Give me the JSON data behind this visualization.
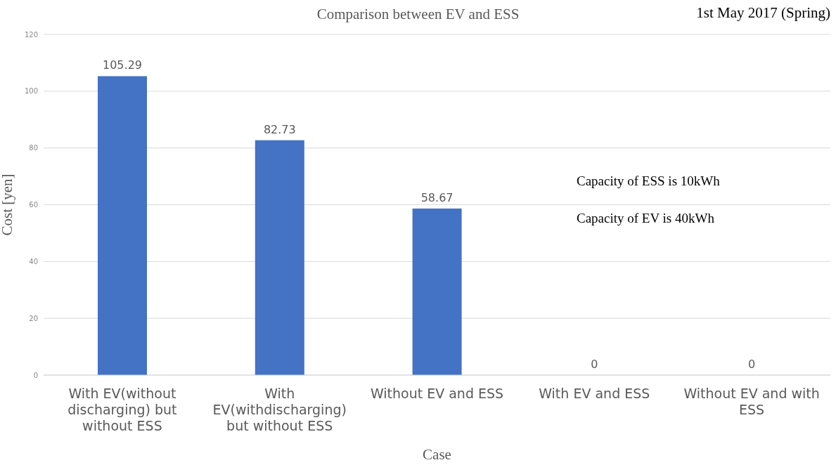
{
  "chart_data": {
    "type": "bar",
    "title": "Comparison between EV and ESS",
    "xlabel": "Case",
    "ylabel": "Cost [yen]",
    "categories": [
      "With EV(without discharging) but without ESS",
      "With EV(withdischarging) but without ESS",
      "Without EV and ESS",
      "With EV and ESS",
      "Without EV and with ESS"
    ],
    "values": [
      105.29,
      82.73,
      58.67,
      0,
      0
    ],
    "color": "#4472c4",
    "ylim": [
      0,
      120
    ],
    "yticks": [
      0,
      20,
      40,
      60,
      80,
      100,
      120
    ],
    "grid": "y",
    "data_labels": true,
    "annotations": [
      "1st May 2017 (Spring)",
      "Capacity of ESS is 10kWh",
      "Capacity of EV is 40kWh"
    ]
  }
}
